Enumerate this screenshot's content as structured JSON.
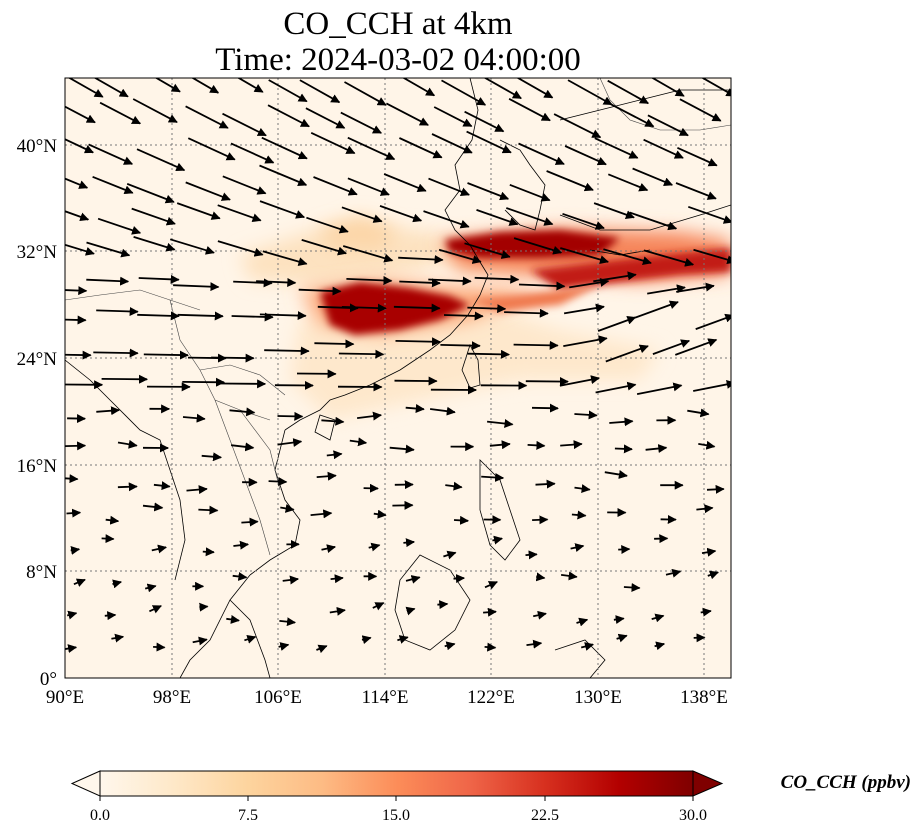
{
  "title": {
    "line1": "CO_CCH at 4km",
    "line2": "Time: 2024-03-02 04:00:00"
  },
  "map": {
    "lon_range": [
      90,
      140
    ],
    "lat_range": [
      0,
      45
    ],
    "x_ticks": [
      "90°E",
      "98°E",
      "106°E",
      "114°E",
      "122°E",
      "130°E",
      "138°E"
    ],
    "x_tick_values": [
      90,
      98,
      106,
      114,
      122,
      130,
      138
    ],
    "y_ticks": [
      "0°",
      "8°N",
      "16°N",
      "24°N",
      "32°N",
      "40°N"
    ],
    "y_tick_values": [
      0,
      8,
      16,
      24,
      32,
      40
    ],
    "gridlines": true,
    "wind_vectors": true,
    "coastlines": true
  },
  "colorbar": {
    "label": "CO_CCH (ppbv)",
    "ticks": [
      "0.0",
      "7.5",
      "15.0",
      "22.5",
      "30.0"
    ],
    "tick_values": [
      0,
      7.5,
      15,
      22.5,
      30
    ],
    "colormap": "OrRd",
    "extend": "both",
    "colors": [
      "#fff7ec",
      "#fee8c8",
      "#fdd49e",
      "#fdbb84",
      "#fc8d59",
      "#ef6548",
      "#d7301f",
      "#b30000",
      "#7f0000"
    ]
  },
  "chart_data": {
    "type": "heatmap",
    "title": "CO_CCH at 4km\nTime: 2024-03-02 04:00:00",
    "variable": "CO_CCH",
    "units": "ppbv",
    "xlim": [
      90,
      140
    ],
    "ylim": [
      0,
      45
    ],
    "vmin": 0,
    "vmax": 30,
    "plumes": [
      {
        "lon": [
          110,
          118
        ],
        "lat": [
          26,
          29.5
        ],
        "peak": 30
      },
      {
        "lon": [
          118,
          130
        ],
        "lat": [
          31,
          33
        ],
        "peak": 28
      },
      {
        "lon": [
          126,
          140
        ],
        "lat": [
          30,
          32.5
        ],
        "peak": 25
      },
      {
        "lon": [
          103,
          112
        ],
        "lat": [
          28,
          31
        ],
        "peak": 8
      },
      {
        "lon": [
          112,
          128
        ],
        "lat": [
          22,
          26
        ],
        "peak": 5
      }
    ]
  }
}
